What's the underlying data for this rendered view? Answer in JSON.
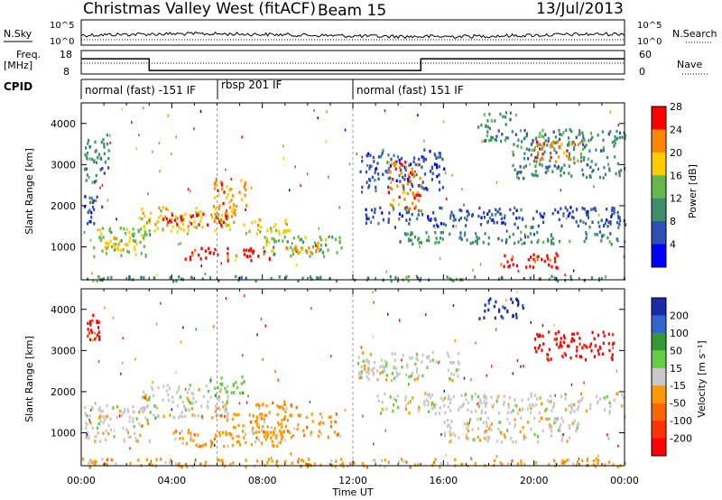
{
  "header": {
    "station": "Christmas Valley West (fitACF)",
    "beam": "Beam 15",
    "date": "13/Jul/2013"
  },
  "strip_panels": {
    "nsky_label": "N.Sky",
    "nsearch_label": "N.Search",
    "noise_ticks": [
      "10^5",
      "10^0"
    ],
    "freq_label_1": "Freq.",
    "freq_label_2": "[MHz]",
    "freq_ticks": [
      "18",
      "8"
    ],
    "nave_label": "Nave",
    "nave_ticks": [
      "60",
      "0"
    ],
    "cpid_label": "CPID",
    "cpid_segments": [
      {
        "label": "normal (fast) -151 IF",
        "start_hour": 0,
        "end_hour": 6
      },
      {
        "label": "rbsp 201 IF",
        "start_hour": 6,
        "end_hour": 12
      },
      {
        "label": "normal (fast) 151 IF",
        "start_hour": 12,
        "end_hour": 24
      }
    ],
    "freq_series": {
      "hours": [
        0,
        3,
        3,
        15,
        15,
        24
      ],
      "mhz": [
        14.5,
        14.5,
        9.5,
        9.5,
        14.5,
        14.5
      ]
    }
  },
  "chart_data": [
    {
      "type": "heatmap",
      "panel": "power",
      "ylabel": "Slant Range [km]",
      "xlabel": "",
      "xlim_hours": [
        0,
        24
      ],
      "ylim": [
        200,
        4500
      ],
      "yticks": [
        1000,
        2000,
        3000,
        4000
      ],
      "colorbar_label": "Power [dB]",
      "colorbar_ticks": [
        "4",
        "8",
        "12",
        "16",
        "20",
        "24",
        "28"
      ],
      "colors": [
        "#0000ff",
        "#2e4fb4",
        "#3e8e6e",
        "#66b84a",
        "#ffcc00",
        "#ff8800",
        "#ff0000"
      ],
      "regions": [
        {
          "t0": 0.1,
          "t1": 1.2,
          "r0": 2600,
          "r1": 3800,
          "level": 2
        },
        {
          "t0": 0.1,
          "t1": 0.9,
          "r0": 1600,
          "r1": 2300,
          "level": 1
        },
        {
          "t0": 0.5,
          "t1": 3.0,
          "r0": 800,
          "r1": 1500,
          "level": 3
        },
        {
          "t0": 1.0,
          "t1": 2.5,
          "r0": 900,
          "r1": 1300,
          "level": 4
        },
        {
          "t0": 2.5,
          "t1": 6.8,
          "r0": 1400,
          "r1": 2000,
          "level": 4
        },
        {
          "t0": 3.5,
          "t1": 6.5,
          "r0": 1550,
          "r1": 1850,
          "level": 6
        },
        {
          "t0": 5.8,
          "t1": 7.3,
          "r0": 1800,
          "r1": 2700,
          "level": 5
        },
        {
          "t0": 4.5,
          "t1": 8.5,
          "r0": 700,
          "r1": 1000,
          "level": 6
        },
        {
          "t0": 7.0,
          "t1": 9.2,
          "r0": 1300,
          "r1": 1700,
          "level": 4
        },
        {
          "t0": 8.0,
          "t1": 11.5,
          "r0": 800,
          "r1": 1300,
          "level": 3
        },
        {
          "t0": 9.0,
          "t1": 10.5,
          "r0": 900,
          "r1": 1100,
          "level": 5
        },
        {
          "t0": 12.3,
          "t1": 16.0,
          "r0": 2400,
          "r1": 3400,
          "level": 1
        },
        {
          "t0": 13.5,
          "t1": 15.0,
          "r0": 1900,
          "r1": 3100,
          "level": 5
        },
        {
          "t0": 12.5,
          "t1": 24.0,
          "r0": 1500,
          "r1": 2000,
          "level": 1
        },
        {
          "t0": 14.0,
          "t1": 24.0,
          "r0": 1100,
          "r1": 1400,
          "level": 2
        },
        {
          "t0": 18.5,
          "t1": 21.0,
          "r0": 500,
          "r1": 900,
          "level": 6
        },
        {
          "t0": 19.0,
          "t1": 24.0,
          "r0": 2700,
          "r1": 3900,
          "level": 2
        },
        {
          "t0": 20.0,
          "t1": 22.0,
          "r0": 3100,
          "r1": 3600,
          "level": 5
        },
        {
          "t0": 17.5,
          "t1": 19.0,
          "r0": 3600,
          "r1": 4300,
          "level": 2
        },
        {
          "t0": 0.0,
          "t1": 24.0,
          "r0": 200,
          "r1": 320,
          "level": 2
        }
      ]
    },
    {
      "type": "heatmap",
      "panel": "velocity",
      "ylabel": "Slant Range [km]",
      "xlabel": "Time UT",
      "xlim_hours": [
        0,
        24
      ],
      "xticks": [
        "00:00",
        "04:00",
        "08:00",
        "12:00",
        "16:00",
        "20:00",
        "00:00"
      ],
      "ylim": [
        200,
        4500
      ],
      "yticks": [
        1000,
        2000,
        3000,
        4000
      ],
      "colorbar_label": "Velocity [m s⁻¹]",
      "colorbar_ticks": [
        "200",
        "100",
        "50",
        "15",
        "-15",
        "-50",
        "-100",
        "-200"
      ],
      "colors": [
        "#1a2aa8",
        "#3366cc",
        "#339933",
        "#66cc44",
        "#c8c8c8",
        "#ff9900",
        "#ff6600",
        "#ff3300",
        "#ff0000"
      ],
      "regions": [
        {
          "t0": 0.2,
          "t1": 0.8,
          "r0": 3300,
          "r1": 3900,
          "level": 8
        },
        {
          "t0": 0.1,
          "t1": 3.0,
          "r0": 800,
          "r1": 1700,
          "level": 4
        },
        {
          "t0": 2.5,
          "t1": 6.5,
          "r0": 1400,
          "r1": 2200,
          "level": 4
        },
        {
          "t0": 5.5,
          "t1": 7.2,
          "r0": 1900,
          "r1": 2400,
          "level": 3
        },
        {
          "t0": 4.0,
          "t1": 9.0,
          "r0": 700,
          "r1": 1100,
          "level": 5
        },
        {
          "t0": 6.0,
          "t1": 11.5,
          "r0": 900,
          "r1": 1500,
          "level": 5
        },
        {
          "t0": 7.5,
          "t1": 9.5,
          "r0": 1400,
          "r1": 1800,
          "level": 5
        },
        {
          "t0": 12.2,
          "t1": 17.0,
          "r0": 2300,
          "r1": 3000,
          "level": 4
        },
        {
          "t0": 13.0,
          "t1": 24.0,
          "r0": 1500,
          "r1": 2000,
          "level": 4
        },
        {
          "t0": 16.0,
          "t1": 22.0,
          "r0": 800,
          "r1": 1400,
          "level": 4
        },
        {
          "t0": 20.0,
          "t1": 23.5,
          "r0": 2800,
          "r1": 3500,
          "level": 8
        },
        {
          "t0": 17.5,
          "t1": 19.5,
          "r0": 3800,
          "r1": 4300,
          "level": 0
        },
        {
          "t0": 0.0,
          "t1": 24.0,
          "r0": 200,
          "r1": 400,
          "level": 5
        }
      ]
    }
  ]
}
